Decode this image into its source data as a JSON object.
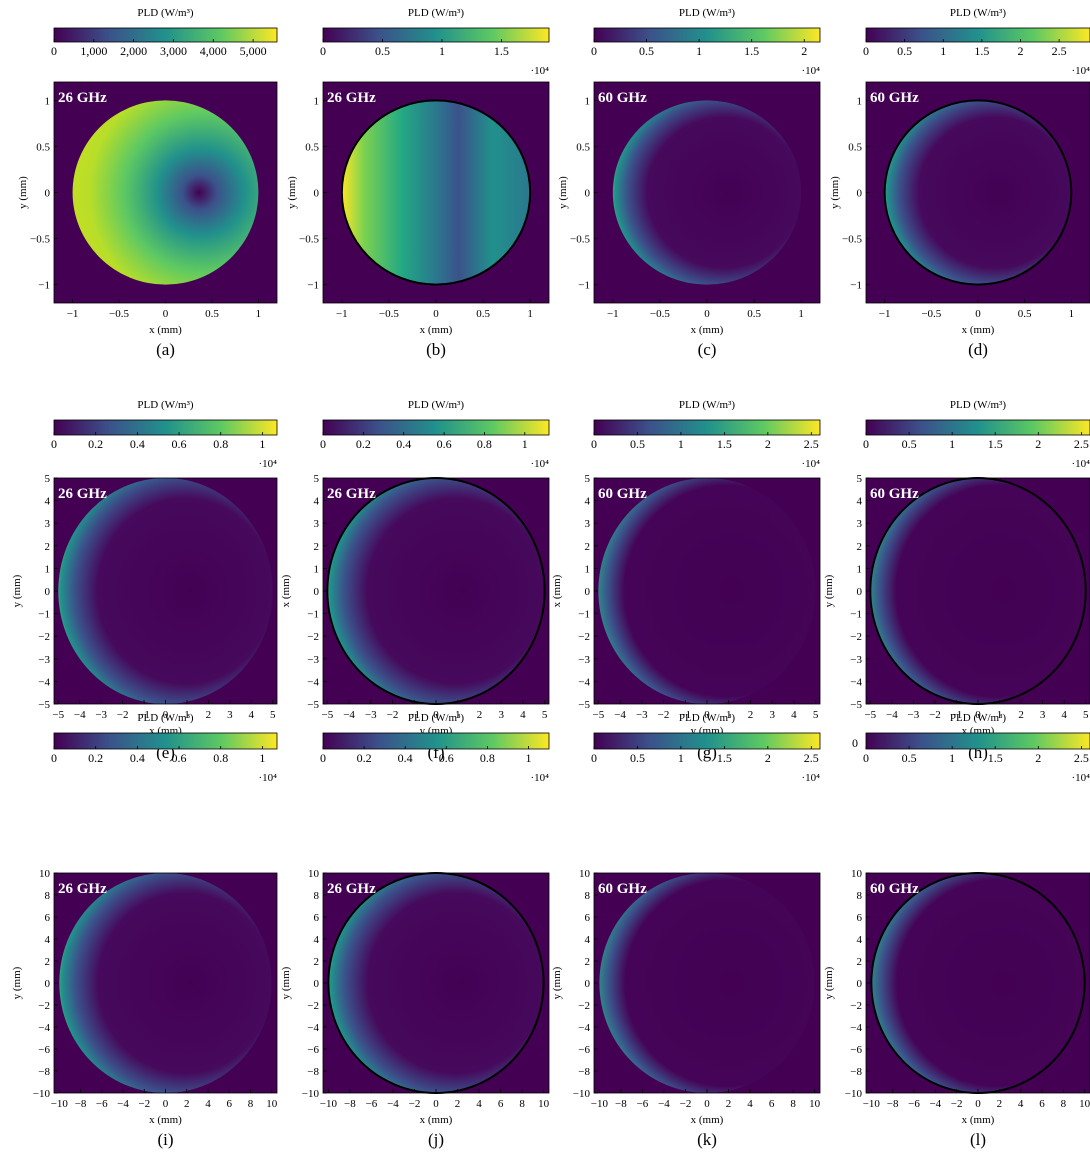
{
  "colormap": [
    "#440154",
    "#3b528b",
    "#21918c",
    "#5ec962",
    "#fde725"
  ],
  "chart_data": [
    {
      "id": "a",
      "caption": "(a)",
      "type": "heatmap",
      "freq_label": "26 GHz",
      "colorbar": {
        "title": "PLD (W/m³)",
        "ticks": [
          "0",
          "1,000",
          "2,000",
          "3,000",
          "4,000",
          "5,000"
        ],
        "tick_values": [
          0,
          1000,
          2000,
          3000,
          4000,
          5000
        ],
        "range": [
          0,
          5600
        ],
        "multiplier": ""
      },
      "xlabel": "x (mm)",
      "ylabel": "y (mm)",
      "xlim": [
        -1.2,
        1.2
      ],
      "ylim": [
        -1.2,
        1.2
      ],
      "xticks": [
        "−1",
        "−0.5",
        "0",
        "0.5",
        "1"
      ],
      "xtick_values": [
        -1,
        -0.5,
        0,
        0.5,
        1
      ],
      "yticks": [
        "−1",
        "−0.5",
        "0",
        "0.5",
        "1"
      ],
      "ytick_values": [
        -1,
        -0.5,
        0,
        0.5,
        1
      ],
      "circle_radius": 1,
      "outline": false,
      "pattern": "crescent"
    },
    {
      "id": "b",
      "caption": "(b)",
      "type": "heatmap",
      "freq_label": "26 GHz",
      "colorbar": {
        "title": "PLD (W/m³)",
        "ticks": [
          "0",
          "0.5",
          "1",
          "1.5"
        ],
        "tick_values": [
          0,
          0.5,
          1,
          1.5
        ],
        "range": [
          0,
          1.9
        ],
        "multiplier": "·10⁴"
      },
      "xlabel": "x (mm)",
      "ylabel": "y (mm)",
      "xlim": [
        -1.2,
        1.2
      ],
      "ylim": [
        -1.2,
        1.2
      ],
      "xticks": [
        "−1",
        "−0.5",
        "0",
        "0.5",
        "1"
      ],
      "xtick_values": [
        -1,
        -0.5,
        0,
        0.5,
        1
      ],
      "yticks": [
        "−1",
        "−0.5",
        "0",
        "0.5",
        "1"
      ],
      "ytick_values": [
        -1,
        -0.5,
        0,
        0.5,
        1
      ],
      "circle_radius": 1,
      "outline": true,
      "pattern": "left_glow"
    },
    {
      "id": "c",
      "caption": "(c)",
      "type": "heatmap",
      "freq_label": "60 GHz",
      "colorbar": {
        "title": "PLD (W/m³)",
        "ticks": [
          "0",
          "0.5",
          "1",
          "1.5",
          "2"
        ],
        "tick_values": [
          0,
          0.5,
          1,
          1.5,
          2
        ],
        "range": [
          0,
          2.15
        ],
        "multiplier": "·10⁴"
      },
      "xlabel": "x (mm)",
      "ylabel": "y (mm)",
      "xlim": [
        -1.2,
        1.2
      ],
      "ylim": [
        -1.2,
        1.2
      ],
      "xticks": [
        "−1",
        "−0.5",
        "0",
        "0.5",
        "1"
      ],
      "xtick_values": [
        -1,
        -0.5,
        0,
        0.5,
        1
      ],
      "yticks": [
        "−1",
        "−0.5",
        "0",
        "0.5",
        "1"
      ],
      "ytick_values": [
        -1,
        -0.5,
        0,
        0.5,
        1
      ],
      "circle_radius": 1,
      "outline": false,
      "pattern": "rim_left"
    },
    {
      "id": "d",
      "caption": "(d)",
      "type": "heatmap",
      "freq_label": "60 GHz",
      "colorbar": {
        "title": "PLD (W/m³)",
        "ticks": [
          "0",
          "0.5",
          "1",
          "1.5",
          "2",
          "2.5"
        ],
        "tick_values": [
          0,
          0.5,
          1,
          1.5,
          2,
          2.5
        ],
        "range": [
          0,
          2.9
        ],
        "multiplier": "·10⁴"
      },
      "xlabel": "x (mm)",
      "ylabel": "y (mm)",
      "xlim": [
        -1.2,
        1.2
      ],
      "ylim": [
        -1.2,
        1.2
      ],
      "xticks": [
        "−1",
        "−0.5",
        "0",
        "0.5",
        "1"
      ],
      "xtick_values": [
        -1,
        -0.5,
        0,
        0.5,
        1
      ],
      "yticks": [
        "−1",
        "−0.5",
        "0",
        "0.5",
        "1"
      ],
      "ytick_values": [
        -1,
        -0.5,
        0,
        0.5,
        1
      ],
      "circle_radius": 1,
      "outline": true,
      "pattern": "left_edge"
    },
    {
      "id": "e",
      "caption": "(e)",
      "type": "heatmap",
      "freq_label": "26 GHz",
      "colorbar": {
        "title": "PLD (W/m³)",
        "ticks": [
          "0",
          "0.2",
          "0.4",
          "0.6",
          "0.8",
          "1"
        ],
        "tick_values": [
          0,
          0.2,
          0.4,
          0.6,
          0.8,
          1
        ],
        "range": [
          0,
          1.07
        ],
        "multiplier": "·10⁴"
      },
      "xlabel": "x (mm)",
      "ylabel": "y (mm)",
      "xlim": [
        -5.2,
        5.2
      ],
      "ylim": [
        -5,
        5
      ],
      "xticks": [
        "−5",
        "−4",
        "−3",
        "−2",
        "−1",
        "0",
        "1",
        "2",
        "3",
        "4",
        "5"
      ],
      "xtick_values": [
        -5,
        -4,
        -3,
        -2,
        -1,
        0,
        1,
        2,
        3,
        4,
        5
      ],
      "yticks": [
        "−5",
        "−4",
        "−3",
        "−2",
        "−1",
        "0",
        "1",
        "2",
        "3",
        "4",
        "5"
      ],
      "ytick_values": [
        -5,
        -4,
        -3,
        -2,
        -1,
        0,
        1,
        2,
        3,
        4,
        5
      ],
      "circle_radius": 5,
      "outline": false,
      "pattern": "rim_left"
    },
    {
      "id": "f",
      "caption": "(f)",
      "type": "heatmap",
      "freq_label": "26 GHz",
      "colorbar": {
        "title": "PLD (W/m³)",
        "ticks": [
          "0",
          "0.2",
          "0.4",
          "0.6",
          "0.8",
          "1"
        ],
        "tick_values": [
          0,
          0.2,
          0.4,
          0.6,
          0.8,
          1
        ],
        "range": [
          0,
          1.12
        ],
        "multiplier": "·10⁴"
      },
      "xlabel": "y (mm)",
      "ylabel": "x (mm)",
      "xlim": [
        -5.2,
        5.2
      ],
      "ylim": [
        -5,
        5
      ],
      "xticks": [
        "−5",
        "−4",
        "−3",
        "−2",
        "−1",
        "0",
        "1",
        "2",
        "3",
        "4",
        "5"
      ],
      "xtick_values": [
        -5,
        -4,
        -3,
        -2,
        -1,
        0,
        1,
        2,
        3,
        4,
        5
      ],
      "yticks": [
        "−5",
        "−4",
        "−3",
        "−2",
        "−1",
        "0",
        "1",
        "2",
        "3",
        "4",
        "5"
      ],
      "ytick_values": [
        -5,
        -4,
        -3,
        -2,
        -1,
        0,
        1,
        2,
        3,
        4,
        5
      ],
      "circle_radius": 5,
      "outline": true,
      "pattern": "left_edge"
    },
    {
      "id": "g",
      "caption": "(g)",
      "type": "heatmap",
      "freq_label": "60 GHz",
      "colorbar": {
        "title": "PLD (W/m³)",
        "ticks": [
          "0",
          "0.5",
          "1",
          "1.5",
          "2",
          "2.5"
        ],
        "tick_values": [
          0,
          0.5,
          1,
          1.5,
          2,
          2.5
        ],
        "range": [
          0,
          2.6
        ],
        "multiplier": "·10⁴"
      },
      "xlabel": "y (mm)",
      "ylabel": "x (mm)",
      "xlim": [
        -5.2,
        5.2
      ],
      "ylim": [
        -5,
        5
      ],
      "xticks": [
        "−5",
        "−4",
        "−3",
        "−2",
        "−1",
        "0",
        "1",
        "2",
        "3",
        "4",
        "5"
      ],
      "xtick_values": [
        -5,
        -4,
        -3,
        -2,
        -1,
        0,
        1,
        2,
        3,
        4,
        5
      ],
      "yticks": [
        "−5",
        "−4",
        "−3",
        "−2",
        "−1",
        "0",
        "1",
        "2",
        "3",
        "4",
        "5"
      ],
      "ytick_values": [
        -5,
        -4,
        -3,
        -2,
        -1,
        0,
        1,
        2,
        3,
        4,
        5
      ],
      "circle_radius": 5,
      "outline": false,
      "pattern": "rim_left_faint"
    },
    {
      "id": "h",
      "caption": "(h)",
      "type": "heatmap",
      "freq_label": "60 GHz",
      "colorbar": {
        "title": "PLD (W/m³)",
        "ticks": [
          "0",
          "0.5",
          "1",
          "1.5",
          "2",
          "2.5"
        ],
        "tick_values": [
          0,
          0.5,
          1,
          1.5,
          2,
          2.5
        ],
        "range": [
          0,
          2.6
        ],
        "multiplier": "·10⁴"
      },
      "xlabel": "x (mm)",
      "ylabel": "y (mm)",
      "xlim": [
        -5.2,
        5.2
      ],
      "ylim": [
        -5,
        5
      ],
      "xticks": [
        "−5",
        "−4",
        "−3",
        "−2",
        "−1",
        "0",
        "1",
        "2",
        "3",
        "4",
        "5"
      ],
      "xtick_values": [
        -5,
        -4,
        -3,
        -2,
        -1,
        0,
        1,
        2,
        3,
        4,
        5
      ],
      "yticks": [
        "−5",
        "−4",
        "−3",
        "−2",
        "−1",
        "0",
        "1",
        "2",
        "3",
        "4",
        "5"
      ],
      "ytick_values": [
        -5,
        -4,
        -3,
        -2,
        -1,
        0,
        1,
        2,
        3,
        4,
        5
      ],
      "circle_radius": 5,
      "outline": true,
      "pattern": "left_edge_faint"
    },
    {
      "id": "i",
      "caption": "(i)",
      "type": "heatmap",
      "freq_label": "26 GHz",
      "colorbar": {
        "title": "PLD (W/m³)",
        "ticks": [
          "0",
          "0.2",
          "0.4",
          "0.6",
          "0.8",
          "1"
        ],
        "tick_values": [
          0,
          0.2,
          0.4,
          0.6,
          0.8,
          1
        ],
        "range": [
          0,
          1.07
        ],
        "multiplier": "·10⁴"
      },
      "xlabel": "x (mm)",
      "ylabel": "y (mm)",
      "xlim": [
        -10.5,
        10.5
      ],
      "ylim": [
        -10,
        10
      ],
      "xticks": [
        "−10",
        "−8",
        "−6",
        "−4",
        "−2",
        "0",
        "2",
        "4",
        "6",
        "8",
        "10"
      ],
      "xtick_values": [
        -10,
        -8,
        -6,
        -4,
        -2,
        0,
        2,
        4,
        6,
        8,
        10
      ],
      "yticks": [
        "−10",
        "−8",
        "−6",
        "−4",
        "−2",
        "0",
        "2",
        "4",
        "6",
        "8",
        "10"
      ],
      "ytick_values": [
        -10,
        -8,
        -6,
        -4,
        -2,
        0,
        2,
        4,
        6,
        8,
        10
      ],
      "circle_radius": 10,
      "outline": false,
      "pattern": "rim_left"
    },
    {
      "id": "j",
      "caption": "(j)",
      "type": "heatmap",
      "freq_label": "26 GHz",
      "colorbar": {
        "title": "PLD (W/m³)",
        "ticks": [
          "0",
          "0.2",
          "0.4",
          "0.6",
          "0.8",
          "1"
        ],
        "tick_values": [
          0,
          0.2,
          0.4,
          0.6,
          0.8,
          1
        ],
        "range": [
          0,
          1.1
        ],
        "multiplier": "·10⁴"
      },
      "xlabel": "x (mm)",
      "ylabel": "y (mm)",
      "xlim": [
        -10.5,
        10.5
      ],
      "ylim": [
        -10,
        10
      ],
      "xticks": [
        "−10",
        "−8",
        "−6",
        "−4",
        "−2",
        "0",
        "2",
        "4",
        "6",
        "8",
        "10"
      ],
      "xtick_values": [
        -10,
        -8,
        -6,
        -4,
        -2,
        0,
        2,
        4,
        6,
        8,
        10
      ],
      "yticks": [
        "−10",
        "−8",
        "−6",
        "−4",
        "−2",
        "0",
        "2",
        "4",
        "6",
        "8",
        "10"
      ],
      "ytick_values": [
        -10,
        -8,
        -6,
        -4,
        -2,
        0,
        2,
        4,
        6,
        8,
        10
      ],
      "circle_radius": 10,
      "outline": true,
      "pattern": "left_edge"
    },
    {
      "id": "k",
      "caption": "(k)",
      "type": "heatmap",
      "freq_label": "60 GHz",
      "colorbar": {
        "title": "PLD (W/m³)",
        "ticks": [
          "0",
          "0.5",
          "1",
          "1.5",
          "2",
          "2.5"
        ],
        "tick_values": [
          0,
          0.5,
          1,
          1.5,
          2,
          2.5
        ],
        "range": [
          0,
          2.6
        ],
        "multiplier": "·10⁴"
      },
      "xlabel": "x (mm)",
      "ylabel": "y (mm)",
      "xlim": [
        -10.5,
        10.5
      ],
      "ylim": [
        -10,
        10
      ],
      "xticks": [
        "−10",
        "−8",
        "−6",
        "−4",
        "−2",
        "0",
        "2",
        "4",
        "6",
        "8",
        "10"
      ],
      "xtick_values": [
        -10,
        -8,
        -6,
        -4,
        -2,
        0,
        2,
        4,
        6,
        8,
        10
      ],
      "yticks": [
        "−10",
        "−8",
        "−6",
        "−4",
        "−2",
        "0",
        "2",
        "4",
        "6",
        "8",
        "10"
      ],
      "ytick_values": [
        -10,
        -8,
        -6,
        -4,
        -2,
        0,
        2,
        4,
        6,
        8,
        10
      ],
      "circle_radius": 10,
      "outline": false,
      "pattern": "rim_left_faint"
    },
    {
      "id": "l",
      "caption": "(l)",
      "type": "heatmap",
      "freq_label": "60 GHz",
      "colorbar": {
        "title": "PLD (W/m³)",
        "ticks": [
          "0",
          "0.5",
          "1",
          "1.5",
          "2",
          "2.5"
        ],
        "tick_values": [
          0,
          0.5,
          1,
          1.5,
          2,
          2.5
        ],
        "range": [
          0,
          2.6
        ],
        "multiplier": "·10⁴",
        "extra_label": "0"
      },
      "xlabel": "x (mm)",
      "ylabel": "y (mm)",
      "xlim": [
        -10.5,
        10.5
      ],
      "ylim": [
        -10,
        10
      ],
      "xticks": [
        "−10",
        "−8",
        "−6",
        "−4",
        "−2",
        "0",
        "2",
        "4",
        "6",
        "8",
        "10"
      ],
      "xtick_values": [
        -10,
        -8,
        -6,
        -4,
        -2,
        0,
        2,
        4,
        6,
        8,
        10
      ],
      "yticks": [
        "−10",
        "−8",
        "−6",
        "−4",
        "−2",
        "0",
        "2",
        "4",
        "6",
        "8",
        "10"
      ],
      "ytick_values": [
        -10,
        -8,
        -6,
        -4,
        -2,
        0,
        2,
        4,
        6,
        8,
        10
      ],
      "circle_radius": 10,
      "outline": true,
      "pattern": "left_edge_faint"
    }
  ]
}
